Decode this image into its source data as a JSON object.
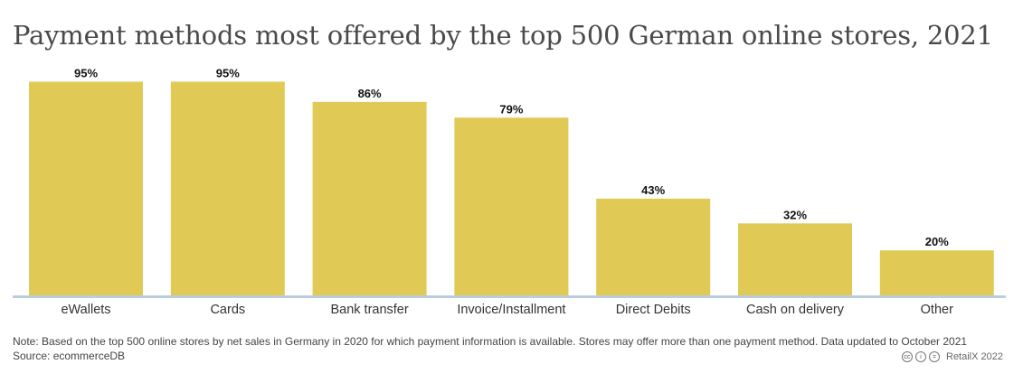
{
  "chart_data": {
    "type": "bar",
    "title": "Payment methods most offered by the top 500 German online stores, 2021",
    "categories": [
      "eWallets",
      "Cards",
      "Bank transfer",
      "Invoice/Installment",
      "Direct Debits",
      "Cash on delivery",
      "Other"
    ],
    "values": [
      95,
      95,
      86,
      79,
      43,
      32,
      20
    ],
    "value_labels": [
      "95%",
      "95%",
      "86%",
      "79%",
      "43%",
      "32%",
      "20%"
    ],
    "unit": "%",
    "ylim": [
      0,
      100
    ],
    "grid": false,
    "bar_color": "#e0c955",
    "axis_line_color": "#b9cddf"
  },
  "footer": {
    "note": "Note: Based on the top 500 online stores by net sales in Germany in 2020 for which payment information is available. Stores may offer more than one payment method. Data updated to October 2021",
    "source": "Source: ecommerceDB",
    "credit": "RetailX 2022",
    "license_icons": [
      "cc",
      "i",
      "="
    ]
  }
}
